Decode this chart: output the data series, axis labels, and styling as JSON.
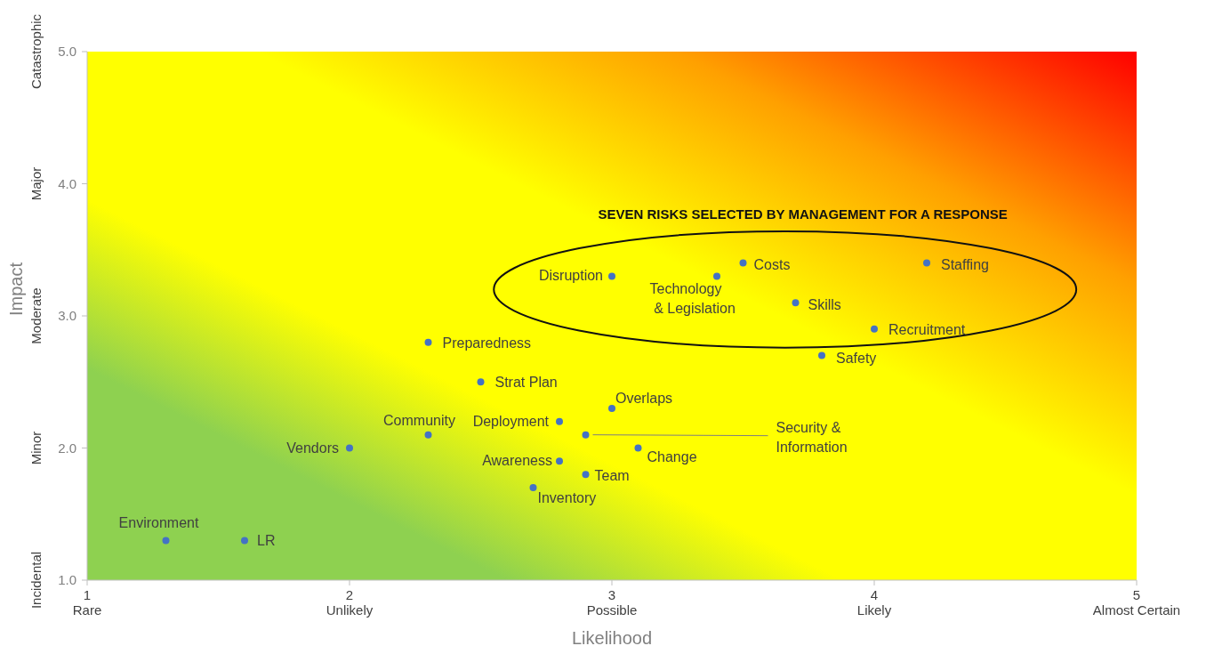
{
  "chart_data": {
    "type": "scatter",
    "xlabel": "Likelihood",
    "ylabel": "Impact",
    "marker": "circle",
    "xlim": [
      1,
      5
    ],
    "ylim": [
      1,
      5
    ],
    "xticks": [
      {
        "value": 1,
        "label": "1\nRare"
      },
      {
        "value": 2,
        "label": "2\nUnlikely"
      },
      {
        "value": 3,
        "label": "3\nPossible"
      },
      {
        "value": 4,
        "label": "4\nLikely"
      },
      {
        "value": 5,
        "label": "5\nAlmost Certain"
      }
    ],
    "yticks": [
      {
        "value": 1,
        "label": "1.0\nIncidental"
      },
      {
        "value": 2,
        "label": "2.0\nMinor"
      },
      {
        "value": 3,
        "label": "3.0\nModerate"
      },
      {
        "value": 4,
        "label": "4.0\nMajor"
      },
      {
        "value": 5,
        "label": "5.0\nCatastrophic"
      }
    ],
    "series": [
      {
        "color": "#4472c4",
        "x": [
          1.3,
          1.6,
          2.0,
          2.3,
          2.3,
          2.5,
          2.8,
          2.8,
          2.7,
          2.9,
          2.9,
          3.0,
          3.1,
          3.0,
          3.4,
          3.5,
          3.7,
          4.2,
          4.0,
          3.8
        ],
        "values": [
          1.3,
          1.3,
          2.0,
          2.1,
          2.8,
          2.5,
          2.2,
          1.9,
          1.7,
          1.8,
          2.1,
          2.3,
          2.0,
          3.3,
          3.3,
          3.4,
          3.1,
          3.4,
          2.9,
          2.7
        ]
      }
    ],
    "annotations": [
      "SEVEN RISKS SELECTED BY MANAGEMENT FOR A RESPONSE",
      {
        "text": "Environment",
        "x": 1.3,
        "y": 1.3
      },
      {
        "text": "LR",
        "x": 1.6,
        "y": 1.3
      },
      {
        "text": "Vendors",
        "x": 2.0,
        "y": 2.0
      },
      {
        "text": "Community",
        "x": 2.3,
        "y": 2.1
      },
      {
        "text": "Preparedness",
        "x": 2.3,
        "y": 2.8
      },
      {
        "text": "Strat Plan",
        "x": 2.5,
        "y": 2.5
      },
      {
        "text": "Deployment",
        "x": 2.8,
        "y": 2.2
      },
      {
        "text": "Awareness",
        "x": 2.8,
        "y": 1.9
      },
      {
        "text": "Inventory",
        "x": 2.7,
        "y": 1.7
      },
      {
        "text": "Team",
        "x": 2.9,
        "y": 1.8
      },
      {
        "text": "Security & Information",
        "x": 2.9,
        "y": 2.1
      },
      {
        "text": "Overlaps",
        "x": 3.0,
        "y": 2.3
      },
      {
        "text": "Change",
        "x": 3.1,
        "y": 2.0
      },
      {
        "text": "Disruption",
        "x": 3.0,
        "y": 3.3
      },
      {
        "text": "Technology & Legislation",
        "x": 3.4,
        "y": 3.3
      },
      {
        "text": "Costs",
        "x": 3.5,
        "y": 3.4
      },
      {
        "text": "Skills",
        "x": 3.7,
        "y": 3.1
      },
      {
        "text": "Staffing",
        "x": 4.2,
        "y": 3.4
      },
      {
        "text": "Recruitment",
        "x": 4.0,
        "y": 2.9
      },
      {
        "text": "Safety",
        "x": 3.8,
        "y": 2.7
      }
    ]
  }
}
